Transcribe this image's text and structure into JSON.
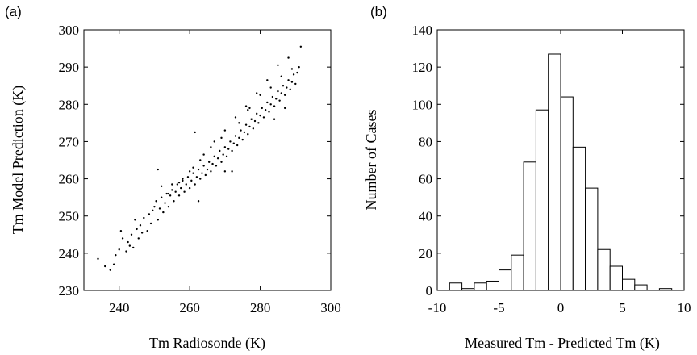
{
  "chart_data": [
    {
      "panel": "(a)",
      "type": "scatter",
      "title": "",
      "xlabel": "Tm Radiosonde (K)",
      "ylabel": "Tm Model Prediction (K)",
      "xlim": [
        230,
        300
      ],
      "ylim": [
        230,
        300
      ],
      "xticks": [
        240,
        260,
        280,
        300
      ],
      "yticks": [
        230,
        240,
        250,
        260,
        270,
        280,
        290,
        300
      ],
      "grid": false,
      "legend": "none",
      "marker_color": "#000000",
      "points": [
        [
          234.0,
          238.5
        ],
        [
          236.0,
          236.5
        ],
        [
          237.5,
          235.5
        ],
        [
          238.5,
          237.0
        ],
        [
          239.0,
          239.5
        ],
        [
          240.0,
          241.0
        ],
        [
          240.5,
          246.0
        ],
        [
          241.0,
          244.0
        ],
        [
          242.0,
          240.5
        ],
        [
          242.5,
          243.0
        ],
        [
          243.0,
          242.0
        ],
        [
          243.5,
          245.0
        ],
        [
          244.0,
          241.5
        ],
        [
          244.5,
          249.0
        ],
        [
          245.0,
          246.5
        ],
        [
          245.5,
          244.0
        ],
        [
          246.0,
          247.5
        ],
        [
          246.5,
          245.5
        ],
        [
          247.0,
          249.5
        ],
        [
          248.0,
          246.0
        ],
        [
          248.5,
          250.5
        ],
        [
          249.0,
          248.0
        ],
        [
          249.5,
          251.5
        ],
        [
          250.0,
          252.5
        ],
        [
          250.5,
          254.0
        ],
        [
          251.0,
          249.0
        ],
        [
          251.5,
          252.0
        ],
        [
          252.0,
          255.0
        ],
        [
          252.5,
          251.0
        ],
        [
          253.0,
          253.5
        ],
        [
          253.5,
          256.0
        ],
        [
          254.0,
          252.5
        ],
        [
          254.5,
          255.5
        ],
        [
          255.0,
          257.0
        ],
        [
          255.5,
          254.0
        ],
        [
          256.0,
          256.5
        ],
        [
          256.5,
          258.5
        ],
        [
          257.0,
          255.5
        ],
        [
          257.5,
          257.5
        ],
        [
          258.0,
          259.5
        ],
        [
          258.5,
          256.5
        ],
        [
          259.0,
          258.5
        ],
        [
          259.5,
          260.5
        ],
        [
          260.0,
          257.5
        ],
        [
          260.5,
          259.5
        ],
        [
          261.0,
          261.5
        ],
        [
          261.5,
          258.5
        ],
        [
          262.0,
          260.5
        ],
        [
          262.5,
          262.5
        ],
        [
          263.0,
          260.0
        ],
        [
          263.5,
          261.5
        ],
        [
          264.0,
          263.5
        ],
        [
          264.5,
          261.0
        ],
        [
          265.0,
          262.5
        ],
        [
          265.5,
          264.5
        ],
        [
          266.0,
          262.0
        ],
        [
          266.5,
          264.0
        ],
        [
          267.0,
          266.0
        ],
        [
          267.5,
          263.5
        ],
        [
          268.0,
          265.5
        ],
        [
          268.5,
          267.5
        ],
        [
          269.0,
          264.5
        ],
        [
          269.5,
          266.5
        ],
        [
          270.0,
          268.5
        ],
        [
          270.5,
          266.0
        ],
        [
          271.0,
          268.0
        ],
        [
          271.5,
          270.0
        ],
        [
          272.0,
          267.5
        ],
        [
          272.5,
          269.5
        ],
        [
          273.0,
          271.5
        ],
        [
          273.5,
          269.0
        ],
        [
          274.0,
          271.0
        ],
        [
          274.5,
          273.0
        ],
        [
          275.0,
          270.5
        ],
        [
          275.5,
          272.5
        ],
        [
          276.0,
          274.5
        ],
        [
          276.5,
          272.0
        ],
        [
          277.0,
          274.0
        ],
        [
          277.5,
          276.0
        ],
        [
          278.0,
          273.5
        ],
        [
          278.5,
          275.5
        ],
        [
          279.0,
          277.5
        ],
        [
          279.5,
          275.0
        ],
        [
          280.0,
          277.0
        ],
        [
          280.5,
          279.0
        ],
        [
          281.0,
          276.5
        ],
        [
          281.5,
          278.5
        ],
        [
          282.0,
          280.5
        ],
        [
          282.5,
          278.0
        ],
        [
          283.0,
          280.0
        ],
        [
          283.5,
          282.0
        ],
        [
          284.0,
          279.5
        ],
        [
          284.5,
          281.5
        ],
        [
          285.0,
          283.5
        ],
        [
          285.5,
          281.0
        ],
        [
          286.0,
          283.0
        ],
        [
          286.5,
          285.0
        ],
        [
          287.0,
          282.5
        ],
        [
          287.5,
          284.5
        ],
        [
          288.0,
          286.5
        ],
        [
          288.5,
          284.0
        ],
        [
          289.0,
          286.0
        ],
        [
          289.5,
          288.0
        ],
        [
          290.0,
          285.5
        ],
        [
          290.5,
          288.5
        ],
        [
          291.0,
          290.0
        ],
        [
          291.5,
          295.5
        ],
        [
          288.0,
          292.5
        ],
        [
          285.0,
          290.5
        ],
        [
          282.0,
          286.5
        ],
        [
          279.0,
          283.0
        ],
        [
          276.0,
          279.5
        ],
        [
          273.0,
          276.5
        ],
        [
          270.0,
          273.0
        ],
        [
          267.0,
          270.0
        ],
        [
          264.0,
          266.5
        ],
        [
          261.0,
          263.0
        ],
        [
          258.0,
          260.0
        ],
        [
          255.0,
          258.5
        ],
        [
          252.0,
          258.0
        ],
        [
          251.0,
          262.5
        ],
        [
          261.5,
          272.5
        ],
        [
          262.5,
          254.0
        ],
        [
          270.0,
          262.0
        ],
        [
          272.0,
          262.0
        ],
        [
          276.5,
          278.5
        ],
        [
          269.0,
          271.0
        ],
        [
          266.0,
          268.5
        ],
        [
          263.0,
          265.0
        ],
        [
          260.0,
          262.0
        ],
        [
          257.0,
          259.0
        ],
        [
          254.0,
          256.0
        ],
        [
          274.0,
          275.0
        ],
        [
          277.0,
          279.0
        ],
        [
          280.0,
          282.5
        ],
        [
          283.0,
          284.5
        ],
        [
          286.0,
          287.5
        ],
        [
          289.0,
          289.5
        ],
        [
          284.0,
          276.0
        ],
        [
          287.0,
          279.0
        ]
      ]
    },
    {
      "panel": "(b)",
      "type": "bar",
      "title": "",
      "xlabel": "Measured Tm - Predicted Tm (K)",
      "ylabel": "Number of Cases",
      "xlim": [
        -10,
        10
      ],
      "ylim": [
        0,
        140
      ],
      "xticks": [
        -10,
        -5,
        0,
        5,
        10
      ],
      "yticks": [
        0,
        20,
        40,
        60,
        80,
        100,
        120,
        140
      ],
      "grid": false,
      "legend": "none",
      "bin_width": 1,
      "bin_centers": [
        -8.5,
        -7.5,
        -6.5,
        -5.5,
        -4.5,
        -3.5,
        -2.5,
        -1.5,
        -0.5,
        0.5,
        1.5,
        2.5,
        3.5,
        4.5,
        5.5,
        6.5,
        7.5,
        8.5,
        9.5
      ],
      "values": [
        4,
        1,
        4,
        5,
        11,
        19,
        69,
        97,
        127,
        104,
        77,
        55,
        22,
        13,
        6,
        3,
        0,
        1,
        0
      ]
    }
  ]
}
